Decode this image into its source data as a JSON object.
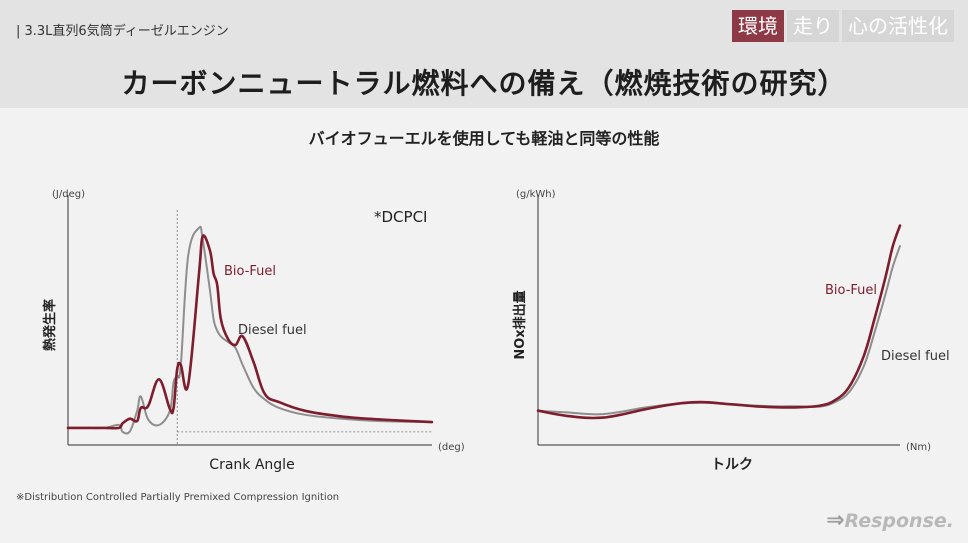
{
  "header": {
    "breadcrumb": "| 3.3L直列6気筒ディーゼルエンジン",
    "tags": [
      {
        "label": "環境",
        "active": true
      },
      {
        "label": "走り",
        "active": false
      },
      {
        "label": "心の活性化",
        "active": false
      }
    ],
    "title": "カーボンニュートラル燃料への備え（燃焼技術の研究）"
  },
  "subtitle": "バイオフューエルを使用しても軽油と同等の性能",
  "chart_data": [
    {
      "type": "line",
      "ylabel": "熱発生率",
      "yunit": "(J/deg)",
      "xlabel": "Crank Angle",
      "xunit": "(deg)",
      "annotation": "*DCPCI",
      "grid": false,
      "x": [
        0,
        5,
        10,
        14,
        15,
        17,
        19,
        20,
        22,
        25,
        28,
        29,
        30,
        31,
        33,
        36,
        37,
        39,
        40,
        41,
        42,
        44,
        46,
        48,
        51,
        54,
        58,
        65,
        75,
        85,
        100
      ],
      "series": [
        {
          "name": "Diesel fuel",
          "color": "#8e8e8e",
          "values": [
            3,
            3,
            3,
            3.5,
            2.3,
            2.4,
            6,
            8.5,
            4.5,
            3.5,
            6,
            11,
            12,
            14,
            33,
            38,
            36,
            27,
            22,
            20,
            19,
            18,
            17,
            14,
            10,
            8,
            6.5,
            5.3,
            4.6,
            4.2,
            4.0
          ]
        },
        {
          "name": "Bio-Fuel",
          "color": "#7d1d2d",
          "values": [
            3,
            3,
            3,
            3,
            3.8,
            4.6,
            4.2,
            6.5,
            6.8,
            11.5,
            6.3,
            6.5,
            13.3,
            14,
            10.5,
            30,
            36.5,
            34,
            30,
            28,
            22,
            18.5,
            17.5,
            19,
            14.5,
            9,
            7.5,
            6,
            5,
            4.5,
            4.0
          ]
        }
      ],
      "reference_line_y": 2.3
    },
    {
      "type": "line",
      "ylabel": "NOx排出量",
      "yunit": "(g/kWh)",
      "xlabel": "トルク",
      "xunit": "(Nm)",
      "grid": false,
      "x": [
        0,
        8,
        18,
        30,
        38,
        45,
        52,
        60,
        66,
        72,
        78,
        82,
        86,
        90,
        93,
        96,
        98,
        100
      ],
      "series": [
        {
          "name": "Bio-Fuel",
          "color": "#7d1d2d",
          "values": [
            10,
            8.5,
            8,
            10.5,
            12,
            12.5,
            12,
            11.3,
            11,
            11,
            11.5,
            13,
            17,
            26,
            37,
            49,
            58,
            64
          ]
        },
        {
          "name": "Diesel fuel",
          "color": "#8e8e8e",
          "values": [
            10,
            9.5,
            9,
            11,
            12,
            12.3,
            12,
            11.5,
            11.3,
            11.3,
            11.2,
            12.5,
            15.5,
            23,
            33,
            44,
            52,
            58
          ]
        }
      ]
    }
  ],
  "footnote": "※Distribution Controlled  Partially Premixed Compression Ignition",
  "logo": "Response."
}
